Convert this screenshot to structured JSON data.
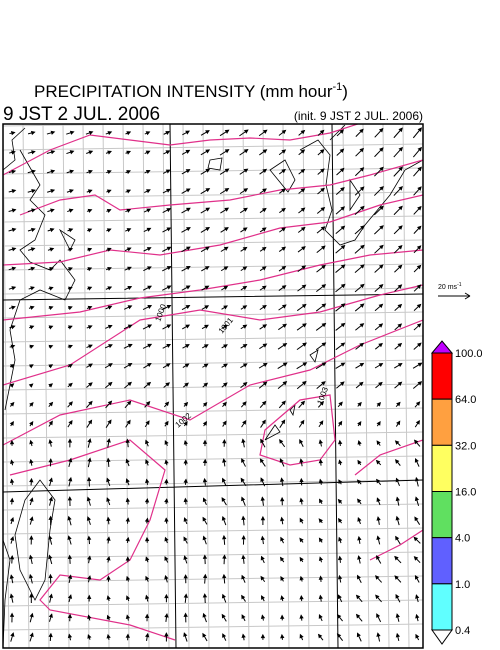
{
  "title": {
    "text": "PRECIPITATION INTENSITY (mm hour",
    "sup": "-1",
    "close": ")"
  },
  "valid_time": "9 JST 2 JUL. 2006",
  "init_time": "(init. 9 JST 2 JUL. 2006)",
  "scale_arrow": {
    "text": "20 ms",
    "sup": "-1"
  },
  "contour_labels": [
    "1000",
    "1001",
    "1002",
    "1003"
  ],
  "colorbar": {
    "labels": [
      "100.0",
      "64.0",
      "32.0",
      "16.0",
      "4.0",
      "1.0",
      "0.4"
    ],
    "over_color": "#c000ff",
    "colors": [
      "#ff0000",
      "#ffa040",
      "#ffff60",
      "#60e060",
      "#6060ff",
      "#60ffff"
    ],
    "under_color": "#ffffff"
  }
}
